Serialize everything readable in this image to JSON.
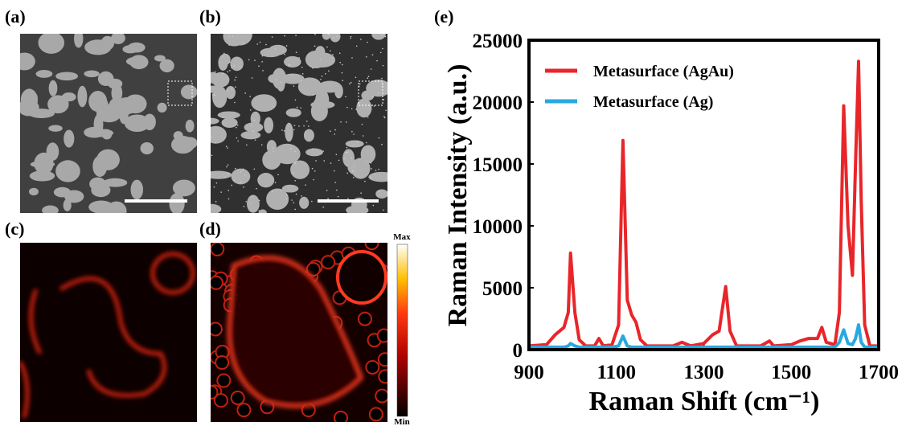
{
  "panels": [
    {
      "label": "(a)"
    },
    {
      "label": "(b)"
    },
    {
      "label": "(c)"
    },
    {
      "label": "(d)"
    }
  ],
  "colorbar": {
    "max": "Max",
    "min": "Min"
  },
  "chart_data": {
    "type": "line",
    "panel_label": "(e)",
    "x_label": "Raman Shift (cm⁻¹)",
    "y_label": "Raman Intensity (a.u.)",
    "xlim": [
      900,
      1700
    ],
    "ylim": [
      0,
      25000
    ],
    "xticks": [
      900,
      1100,
      1300,
      1500,
      1700
    ],
    "yticks": [
      0,
      5000,
      10000,
      15000,
      20000,
      25000
    ],
    "legend": "upper left",
    "x": [
      900,
      940,
      960,
      980,
      990,
      995,
      1005,
      1015,
      1030,
      1050,
      1060,
      1070,
      1090,
      1105,
      1115,
      1125,
      1135,
      1145,
      1155,
      1170,
      1200,
      1230,
      1250,
      1270,
      1300,
      1320,
      1335,
      1350,
      1360,
      1375,
      1400,
      1430,
      1450,
      1460,
      1500,
      1520,
      1540,
      1560,
      1570,
      1580,
      1600,
      1610,
      1620,
      1630,
      1640,
      1647,
      1654,
      1660,
      1668,
      1680,
      1700
    ],
    "series": [
      {
        "name": "Metasurface (AgAu)",
        "color": "#e8262a",
        "values": [
          300,
          400,
          1200,
          1800,
          3000,
          7800,
          3000,
          800,
          300,
          300,
          900,
          300,
          400,
          2000,
          16900,
          4000,
          2800,
          2200,
          800,
          300,
          300,
          300,
          600,
          300,
          500,
          1200,
          1500,
          5100,
          1500,
          300,
          300,
          300,
          700,
          300,
          400,
          700,
          900,
          900,
          1800,
          600,
          400,
          3000,
          19700,
          10000,
          6000,
          15000,
          23300,
          12000,
          2000,
          300,
          300
        ]
      },
      {
        "name": "Metasurface (Ag)",
        "color": "#29a8e0",
        "values": [
          200,
          200,
          200,
          200,
          300,
          500,
          300,
          200,
          200,
          200,
          200,
          200,
          200,
          300,
          1100,
          300,
          200,
          200,
          200,
          200,
          200,
          200,
          200,
          200,
          200,
          200,
          200,
          200,
          200,
          200,
          200,
          200,
          200,
          200,
          200,
          200,
          200,
          200,
          200,
          200,
          200,
          600,
          1600,
          500,
          400,
          900,
          2000,
          600,
          200,
          200,
          200
        ]
      }
    ]
  }
}
